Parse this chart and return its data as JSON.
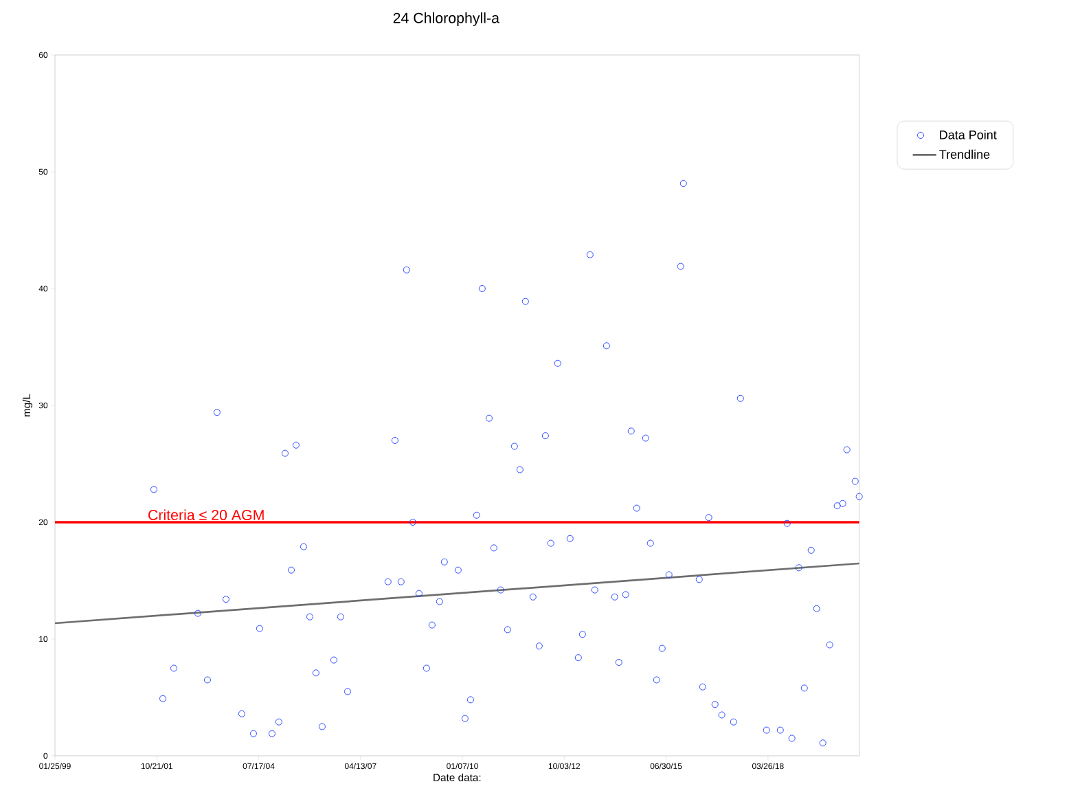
{
  "chart_data": {
    "type": "scatter",
    "title": "24 Chlorophyll-a",
    "xlabel": "Date data:",
    "ylabel": "mg/L",
    "xlim": [
      "1999-01-25",
      "2020-09-07"
    ],
    "ylim": [
      0,
      60
    ],
    "xticks": [
      {
        "value": "1999-01-25",
        "label": "01/25/99"
      },
      {
        "value": "2001-10-21",
        "label": "10/21/01"
      },
      {
        "value": "2004-07-17",
        "label": "07/17/04"
      },
      {
        "value": "2007-04-13",
        "label": "04/13/07"
      },
      {
        "value": "2010-01-07",
        "label": "01/07/10"
      },
      {
        "value": "2012-10-03",
        "label": "10/03/12"
      },
      {
        "value": "2015-06-30",
        "label": "06/30/15"
      },
      {
        "value": "2018-03-26",
        "label": "03/26/18"
      }
    ],
    "yticks": [
      0,
      10,
      20,
      30,
      40,
      50,
      60
    ],
    "legend": "right",
    "ref_lines": [
      {
        "axis": "y",
        "value": 20,
        "label": "Criteria ≤ 20 AGM",
        "color": "#ff0000"
      }
    ],
    "series": [
      {
        "name": "Data Point",
        "color": "#1f3fff",
        "marker": "circle",
        "x": [
          "2001-09-22",
          "2001-12-19",
          "2002-04-06",
          "2002-11-28",
          "2003-03-02",
          "2003-06-04",
          "2003-08-31",
          "2004-02-02",
          "2004-05-27",
          "2004-07-26",
          "2004-11-25",
          "2005-01-31",
          "2005-04-02",
          "2005-06-02",
          "2005-07-19",
          "2005-10-01",
          "2005-12-01",
          "2006-01-30",
          "2006-04-01",
          "2006-07-25",
          "2006-09-30",
          "2006-12-07",
          "2008-01-08",
          "2008-03-16",
          "2008-05-15",
          "2008-07-08",
          "2008-09-07",
          "2008-11-07",
          "2009-01-20",
          "2009-03-15",
          "2009-05-28",
          "2009-07-14",
          "2009-11-26",
          "2010-02-02",
          "2010-03-28",
          "2010-05-27",
          "2010-07-20",
          "2010-09-26",
          "2010-11-12",
          "2011-01-18",
          "2011-03-27",
          "2011-06-02",
          "2011-07-26",
          "2011-09-18",
          "2011-12-01",
          "2012-01-31",
          "2012-04-01",
          "2012-05-24",
          "2012-07-31",
          "2012-11-29",
          "2013-02-18",
          "2013-03-31",
          "2013-06-13",
          "2013-07-30",
          "2013-11-22",
          "2014-02-10",
          "2014-03-23",
          "2014-05-29",
          "2014-07-22",
          "2014-09-14",
          "2014-12-11",
          "2015-01-27",
          "2015-03-29",
          "2015-05-22",
          "2015-07-28",
          "2015-11-20",
          "2015-12-17",
          "2016-05-20",
          "2016-06-23",
          "2016-08-22",
          "2016-10-22",
          "2016-12-28",
          "2017-04-22",
          "2017-06-29",
          "2018-03-12",
          "2018-07-25",
          "2018-09-30",
          "2018-11-16",
          "2019-01-23",
          "2019-03-18",
          "2019-05-24",
          "2019-07-17",
          "2019-09-16",
          "2019-11-22",
          "2020-02-04",
          "2020-03-29",
          "2020-05-09",
          "2020-07-29",
          "2020-09-07"
        ],
        "values": [
          22.8,
          4.9,
          7.5,
          12.2,
          6.5,
          29.4,
          13.4,
          3.6,
          1.9,
          10.9,
          1.9,
          2.9,
          25.9,
          15.9,
          26.6,
          17.9,
          11.9,
          7.1,
          2.5,
          8.2,
          11.9,
          5.5,
          14.9,
          27.0,
          14.9,
          41.6,
          20.0,
          13.9,
          7.5,
          11.2,
          13.2,
          16.6,
          15.9,
          3.2,
          4.8,
          20.6,
          40.0,
          28.9,
          17.8,
          14.2,
          10.8,
          26.5,
          24.5,
          38.9,
          13.6,
          9.4,
          27.4,
          18.2,
          33.6,
          18.6,
          8.4,
          10.4,
          42.9,
          14.2,
          35.1,
          13.6,
          8.0,
          13.8,
          27.8,
          21.2,
          27.2,
          18.2,
          6.5,
          9.2,
          15.5,
          41.9,
          49.0,
          15.1,
          5.9,
          20.4,
          4.4,
          3.5,
          2.9,
          30.6,
          2.2,
          2.2,
          19.9,
          1.5,
          16.1,
          5.8,
          17.6,
          12.6,
          1.1,
          9.5,
          21.4,
          21.6,
          26.2,
          23.5,
          22.2
        ]
      },
      {
        "name": "Trendline",
        "type": "line",
        "color": "#6e6e6e",
        "x": [
          "1999-01-25",
          "2020-09-07"
        ],
        "values": [
          11.35,
          16.47
        ]
      }
    ]
  }
}
